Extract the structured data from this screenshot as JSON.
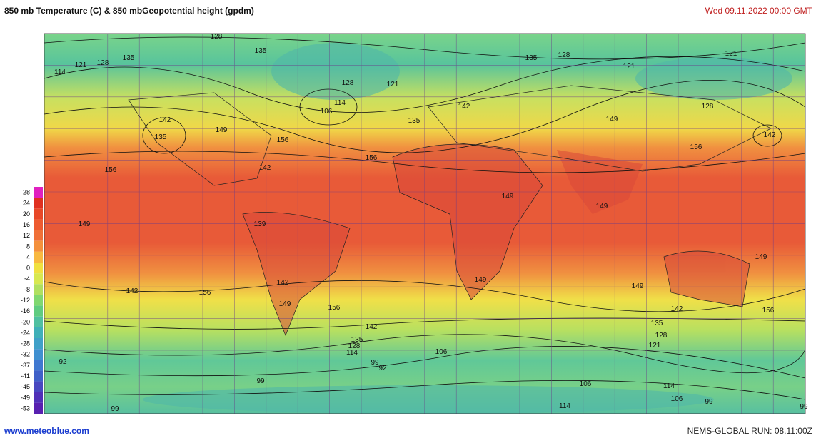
{
  "header": {
    "title": "850 mb Temperature (C)  & 850 mbGeopotential height (gpdm)",
    "date": "Wed 09.11.2022  00:00 GMT"
  },
  "legend": {
    "ticks": [
      28,
      24,
      20,
      16,
      12,
      8,
      4,
      0,
      -4,
      -8,
      -12,
      -16,
      -20,
      -24,
      -28,
      -32,
      -37,
      -41,
      -45,
      -49,
      -53
    ],
    "colors": [
      "#e020c0",
      "#e03020",
      "#e84828",
      "#ee5a30",
      "#f07038",
      "#f4903c",
      "#f8b840",
      "#f0e040",
      "#d8e850",
      "#b0e060",
      "#80d870",
      "#60cc80",
      "#50c0a0",
      "#40b0b8",
      "#40a0c8",
      "#4090d0",
      "#4078d0",
      "#4060c8",
      "#4848c0",
      "#5030b8",
      "#5820b0"
    ]
  },
  "contour_labels": [
    "128",
    "135",
    "135",
    "121",
    "128",
    "114",
    "128",
    "121",
    "106",
    "114",
    "142",
    "135",
    "149",
    "156",
    "135",
    "142",
    "135",
    "128",
    "121",
    "121",
    "128",
    "149",
    "142",
    "156",
    "156",
    "156",
    "142",
    "149",
    "149",
    "149",
    "139",
    "149",
    "149",
    "149",
    "142",
    "156",
    "142",
    "149",
    "156",
    "142",
    "156",
    "142",
    "135",
    "128",
    "114",
    "106",
    "135",
    "128",
    "121",
    "92",
    "99",
    "92",
    "99",
    "106",
    "114",
    "106",
    "99",
    "114",
    "99",
    "99"
  ],
  "footer": {
    "left": "www.meteoblue.com",
    "right": "NEMS-GLOBAL  RUN: 08.11:00Z"
  }
}
